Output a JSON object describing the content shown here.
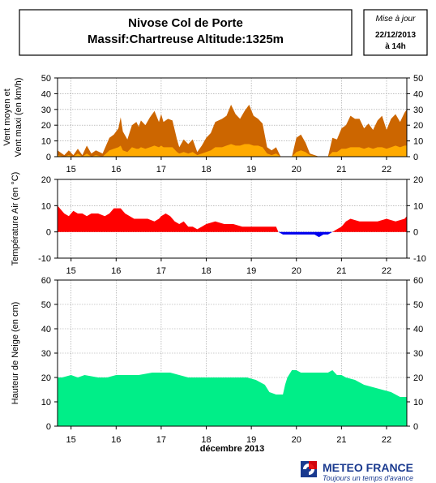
{
  "header": {
    "title_line1": "Nivose Col de Porte",
    "title_line2": "Massif:Chartreuse Altitude:1325m",
    "update_label": "Mise à jour",
    "update_date": "22/12/2013",
    "update_time": "à 14h"
  },
  "footer": {
    "brand": "METEO FRANCE",
    "tagline": "Toujours un temps d'avance"
  },
  "colors": {
    "wind_max": "#cc6600",
    "wind_mean": "#ffaa00",
    "temp_pos": "#ff0000",
    "temp_neg": "#0000ee",
    "snow": "#00ee88",
    "grid": "#999999"
  },
  "chart_data": [
    {
      "type": "area",
      "ylabel_lines": [
        "Vent moyen et",
        "Vent maxi (en km/h)"
      ],
      "ylim": [
        0,
        50
      ],
      "yticks": [
        0,
        10,
        20,
        30,
        40,
        50
      ],
      "xticks": [
        "15",
        "16",
        "17",
        "18",
        "19",
        "20",
        "21",
        "22"
      ],
      "grid": true,
      "series": [
        {
          "key": "wind_max",
          "x": [
            14.7,
            14.85,
            14.95,
            15.05,
            15.15,
            15.25,
            15.35,
            15.45,
            15.55,
            15.7,
            15.85,
            15.95,
            16.05,
            16.1,
            16.15,
            16.25,
            16.35,
            16.45,
            16.5,
            16.55,
            16.65,
            16.75,
            16.85,
            16.95,
            17.0,
            17.05,
            17.15,
            17.25,
            17.35,
            17.4,
            17.5,
            17.6,
            17.7,
            17.8,
            17.9,
            18.0,
            18.1,
            18.2,
            18.35,
            18.45,
            18.55,
            18.65,
            18.75,
            18.85,
            18.95,
            19.05,
            19.15,
            19.25,
            19.35,
            19.45,
            19.55,
            19.65,
            19.8,
            19.9,
            20.0,
            20.1,
            20.2,
            20.3,
            20.5,
            20.7,
            20.8,
            20.9,
            21.0,
            21.1,
            21.2,
            21.3,
            21.4,
            21.5,
            21.6,
            21.7,
            21.8,
            21.9,
            22.0,
            22.1,
            22.2,
            22.3,
            22.4,
            22.45
          ],
          "values": [
            4,
            1,
            4,
            1,
            5,
            1,
            7,
            2,
            4,
            2,
            12,
            14,
            18,
            25,
            16,
            11,
            20,
            22,
            19,
            23,
            20,
            25,
            29,
            22,
            27,
            22,
            24,
            23,
            11,
            6,
            11,
            8,
            11,
            3,
            7,
            12,
            15,
            22,
            24,
            26,
            33,
            27,
            24,
            29,
            33,
            26,
            24,
            21,
            6,
            4,
            6,
            0,
            0,
            0,
            12,
            14,
            9,
            2,
            0,
            0,
            12,
            11,
            18,
            20,
            26,
            24,
            24,
            18,
            21,
            17,
            23,
            26,
            17,
            24,
            27,
            22,
            28,
            30
          ]
        },
        {
          "key": "wind_mean",
          "x": [
            14.7,
            14.85,
            14.95,
            15.05,
            15.15,
            15.25,
            15.35,
            15.45,
            15.55,
            15.7,
            15.85,
            15.95,
            16.05,
            16.1,
            16.15,
            16.25,
            16.35,
            16.45,
            16.5,
            16.55,
            16.65,
            16.75,
            16.85,
            16.95,
            17.0,
            17.05,
            17.15,
            17.25,
            17.35,
            17.4,
            17.5,
            17.6,
            17.7,
            17.8,
            17.9,
            18.0,
            18.1,
            18.2,
            18.35,
            18.45,
            18.55,
            18.65,
            18.75,
            18.85,
            18.95,
            19.05,
            19.15,
            19.25,
            19.35,
            19.45,
            19.55,
            19.65,
            19.8,
            19.9,
            20.0,
            20.1,
            20.2,
            20.3,
            20.5,
            20.7,
            20.8,
            20.9,
            21.0,
            21.1,
            21.2,
            21.3,
            21.4,
            21.5,
            21.6,
            21.7,
            21.8,
            21.9,
            22.0,
            22.1,
            22.2,
            22.3,
            22.4,
            22.45
          ],
          "values": [
            1,
            0,
            1,
            0,
            2,
            0,
            2,
            0,
            1,
            0,
            4,
            5,
            6,
            7,
            4,
            3,
            6,
            5,
            5,
            6,
            5,
            6,
            7,
            6,
            7,
            6,
            6,
            6,
            3,
            2,
            3,
            2,
            3,
            1,
            2,
            3,
            4,
            6,
            6,
            7,
            8,
            7,
            7,
            8,
            8,
            7,
            7,
            6,
            2,
            1,
            2,
            0,
            0,
            0,
            3,
            4,
            3,
            1,
            0,
            0,
            3,
            3,
            5,
            5,
            6,
            6,
            6,
            5,
            6,
            5,
            6,
            6,
            5,
            6,
            7,
            6,
            7,
            7
          ]
        }
      ]
    },
    {
      "type": "area",
      "ylabel_lines": [
        "Température Air (en °C)"
      ],
      "ylim": [
        -10,
        20
      ],
      "yticks": [
        -10,
        0,
        10,
        20
      ],
      "xticks": [
        "15",
        "16",
        "17",
        "18",
        "19",
        "20",
        "21",
        "22"
      ],
      "grid": true,
      "series": [
        {
          "key": "temperature",
          "x": [
            14.7,
            14.75,
            14.85,
            14.95,
            15.05,
            15.15,
            15.25,
            15.35,
            15.45,
            15.6,
            15.75,
            15.85,
            15.95,
            16.0,
            16.1,
            16.2,
            16.3,
            16.4,
            16.55,
            16.7,
            16.85,
            16.95,
            17.0,
            17.1,
            17.2,
            17.3,
            17.4,
            17.5,
            17.6,
            17.7,
            17.8,
            17.9,
            18.0,
            18.2,
            18.4,
            18.6,
            18.8,
            19.0,
            19.2,
            19.4,
            19.55,
            19.6,
            19.7,
            19.8,
            19.9,
            20.0,
            20.1,
            20.2,
            20.3,
            20.4,
            20.5,
            20.6,
            20.7,
            20.8,
            20.9,
            21.0,
            21.1,
            21.2,
            21.4,
            21.6,
            21.8,
            22.0,
            22.2,
            22.4,
            22.45
          ],
          "values": [
            10,
            9,
            7,
            6,
            8,
            7,
            7,
            6,
            7,
            7,
            6,
            7,
            9,
            9,
            9,
            7,
            6,
            5,
            5,
            5,
            4,
            5,
            6,
            7,
            6,
            4,
            3,
            4,
            2,
            2,
            1,
            2,
            3,
            4,
            3,
            3,
            2,
            2,
            2,
            2,
            2,
            0,
            -1,
            -1,
            -1,
            -1,
            -1,
            -1,
            -1,
            -1,
            -2,
            -1,
            -1,
            0,
            1,
            2,
            4,
            5,
            4,
            4,
            4,
            5,
            4,
            5,
            6
          ]
        }
      ]
    },
    {
      "type": "area",
      "ylabel_lines": [
        "Hauteur de Neige (en cm)"
      ],
      "ylim": [
        0,
        60
      ],
      "yticks": [
        0,
        10,
        20,
        30,
        40,
        50,
        60
      ],
      "xticks": [
        "15",
        "16",
        "17",
        "18",
        "19",
        "20",
        "21",
        "22"
      ],
      "xlabel": "décembre 2013",
      "grid": true,
      "series": [
        {
          "key": "snow_height",
          "x": [
            14.7,
            14.8,
            15.0,
            15.15,
            15.3,
            15.6,
            15.8,
            16.0,
            16.2,
            16.5,
            16.8,
            17.0,
            17.2,
            17.4,
            17.6,
            17.8,
            18.0,
            18.3,
            18.6,
            18.9,
            19.1,
            19.3,
            19.4,
            19.55,
            19.7,
            19.75,
            19.8,
            19.9,
            20.0,
            20.1,
            20.3,
            20.5,
            20.7,
            20.8,
            20.9,
            21.0,
            21.1,
            21.3,
            21.5,
            21.7,
            21.9,
            22.1,
            22.3,
            22.45
          ],
          "values": [
            20,
            20,
            21,
            20,
            21,
            20,
            20,
            21,
            21,
            21,
            22,
            22,
            22,
            21,
            20,
            20,
            20,
            20,
            20,
            20,
            19,
            17,
            14,
            13,
            13,
            17,
            20,
            23,
            23,
            22,
            22,
            22,
            22,
            23,
            21,
            21,
            20,
            19,
            17,
            16,
            15,
            14,
            12,
            12
          ]
        }
      ]
    }
  ]
}
